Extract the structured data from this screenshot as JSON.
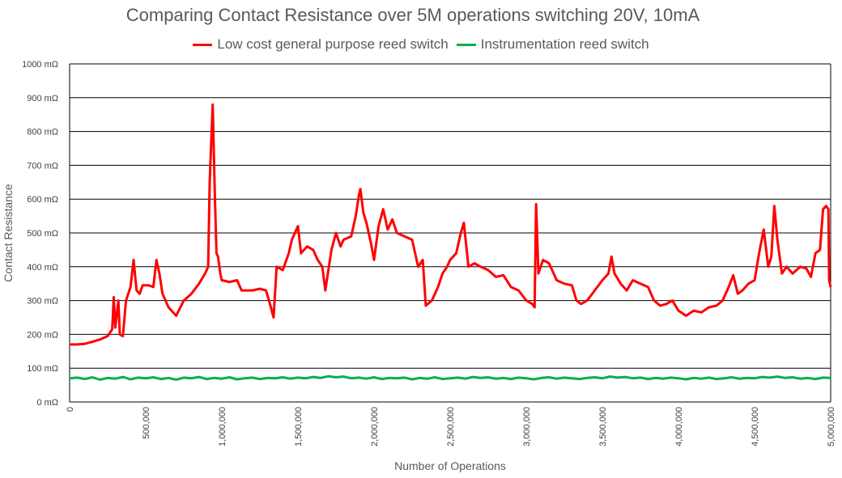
{
  "chart_data": {
    "type": "line",
    "title": "Comparing Contact Resistance over 5M operations switching 20V, 10mA",
    "xlabel": "Number of Operations",
    "ylabel": "Contact Resistance",
    "xlim": [
      0,
      5000000
    ],
    "ylim": [
      0,
      1000
    ],
    "grid": true,
    "legend": "top",
    "x_ticks": [
      "0",
      "500,000",
      "1,000,000",
      "1,500,000",
      "2,000,000",
      "2,500,000",
      "3,000,000",
      "3,500,000",
      "4,000,000",
      "4,500,000",
      "5,000,000"
    ],
    "y_ticks": [
      "0 mΩ",
      "100 mΩ",
      "200 mΩ",
      "300 mΩ",
      "400 mΩ",
      "500 mΩ",
      "600 mΩ",
      "700 mΩ",
      "800 mΩ",
      "900 mΩ",
      "1000 mΩ"
    ],
    "series": [
      {
        "name": "Low cost general purpose reed switch",
        "color": "#ff0000",
        "points": [
          [
            0,
            170
          ],
          [
            50000,
            170
          ],
          [
            100000,
            172
          ],
          [
            150000,
            178
          ],
          [
            200000,
            185
          ],
          [
            250000,
            195
          ],
          [
            280000,
            215
          ],
          [
            290000,
            310
          ],
          [
            300000,
            220
          ],
          [
            320000,
            300
          ],
          [
            330000,
            200
          ],
          [
            350000,
            195
          ],
          [
            370000,
            300
          ],
          [
            400000,
            340
          ],
          [
            420000,
            420
          ],
          [
            440000,
            330
          ],
          [
            460000,
            320
          ],
          [
            480000,
            345
          ],
          [
            520000,
            345
          ],
          [
            550000,
            340
          ],
          [
            570000,
            420
          ],
          [
            590000,
            380
          ],
          [
            610000,
            320
          ],
          [
            650000,
            280
          ],
          [
            700000,
            255
          ],
          [
            750000,
            300
          ],
          [
            800000,
            320
          ],
          [
            850000,
            350
          ],
          [
            890000,
            380
          ],
          [
            910000,
            400
          ],
          [
            920000,
            650
          ],
          [
            940000,
            880
          ],
          [
            955000,
            600
          ],
          [
            965000,
            440
          ],
          [
            975000,
            430
          ],
          [
            990000,
            380
          ],
          [
            1000000,
            360
          ],
          [
            1050000,
            355
          ],
          [
            1100000,
            360
          ],
          [
            1130000,
            330
          ],
          [
            1200000,
            330
          ],
          [
            1250000,
            335
          ],
          [
            1290000,
            330
          ],
          [
            1310000,
            300
          ],
          [
            1340000,
            250
          ],
          [
            1360000,
            400
          ],
          [
            1400000,
            390
          ],
          [
            1440000,
            440
          ],
          [
            1460000,
            480
          ],
          [
            1500000,
            520
          ],
          [
            1520000,
            440
          ],
          [
            1560000,
            460
          ],
          [
            1600000,
            450
          ],
          [
            1630000,
            420
          ],
          [
            1660000,
            400
          ],
          [
            1680000,
            330
          ],
          [
            1720000,
            450
          ],
          [
            1750000,
            500
          ],
          [
            1780000,
            460
          ],
          [
            1800000,
            480
          ],
          [
            1850000,
            490
          ],
          [
            1880000,
            550
          ],
          [
            1900000,
            610
          ],
          [
            1910000,
            630
          ],
          [
            1930000,
            560
          ],
          [
            1950000,
            530
          ],
          [
            1980000,
            470
          ],
          [
            2000000,
            420
          ],
          [
            2030000,
            520
          ],
          [
            2060000,
            570
          ],
          [
            2090000,
            510
          ],
          [
            2120000,
            540
          ],
          [
            2150000,
            500
          ],
          [
            2200000,
            490
          ],
          [
            2250000,
            480
          ],
          [
            2290000,
            400
          ],
          [
            2320000,
            420
          ],
          [
            2340000,
            285
          ],
          [
            2380000,
            300
          ],
          [
            2420000,
            340
          ],
          [
            2450000,
            380
          ],
          [
            2480000,
            400
          ],
          [
            2500000,
            420
          ],
          [
            2540000,
            440
          ],
          [
            2570000,
            500
          ],
          [
            2590000,
            530
          ],
          [
            2620000,
            400
          ],
          [
            2660000,
            410
          ],
          [
            2700000,
            400
          ],
          [
            2750000,
            390
          ],
          [
            2800000,
            370
          ],
          [
            2850000,
            375
          ],
          [
            2900000,
            340
          ],
          [
            2950000,
            330
          ],
          [
            3000000,
            300
          ],
          [
            3040000,
            290
          ],
          [
            3055000,
            280
          ],
          [
            3065000,
            585
          ],
          [
            3080000,
            380
          ],
          [
            3110000,
            420
          ],
          [
            3150000,
            410
          ],
          [
            3200000,
            360
          ],
          [
            3250000,
            350
          ],
          [
            3300000,
            345
          ],
          [
            3330000,
            300
          ],
          [
            3360000,
            290
          ],
          [
            3400000,
            300
          ],
          [
            3450000,
            330
          ],
          [
            3500000,
            360
          ],
          [
            3540000,
            380
          ],
          [
            3560000,
            430
          ],
          [
            3580000,
            380
          ],
          [
            3620000,
            350
          ],
          [
            3660000,
            330
          ],
          [
            3700000,
            360
          ],
          [
            3750000,
            350
          ],
          [
            3800000,
            340
          ],
          [
            3840000,
            300
          ],
          [
            3880000,
            285
          ],
          [
            3920000,
            290
          ],
          [
            3960000,
            300
          ],
          [
            4000000,
            270
          ],
          [
            4050000,
            255
          ],
          [
            4100000,
            270
          ],
          [
            4150000,
            265
          ],
          [
            4200000,
            280
          ],
          [
            4250000,
            285
          ],
          [
            4290000,
            300
          ],
          [
            4330000,
            340
          ],
          [
            4360000,
            375
          ],
          [
            4390000,
            320
          ],
          [
            4420000,
            330
          ],
          [
            4460000,
            350
          ],
          [
            4500000,
            360
          ],
          [
            4530000,
            440
          ],
          [
            4560000,
            510
          ],
          [
            4590000,
            400
          ],
          [
            4610000,
            430
          ],
          [
            4630000,
            580
          ],
          [
            4650000,
            480
          ],
          [
            4680000,
            380
          ],
          [
            4710000,
            400
          ],
          [
            4750000,
            380
          ],
          [
            4800000,
            400
          ],
          [
            4840000,
            395
          ],
          [
            4870000,
            370
          ],
          [
            4900000,
            440
          ],
          [
            4930000,
            450
          ],
          [
            4950000,
            570
          ],
          [
            4970000,
            580
          ],
          [
            4985000,
            570
          ],
          [
            4990000,
            360
          ],
          [
            5000000,
            340
          ]
        ]
      },
      {
        "name": "Instrumentation reed switch",
        "color": "#00b050",
        "points": [
          [
            0,
            70
          ],
          [
            50000,
            72
          ],
          [
            100000,
            68
          ],
          [
            150000,
            73
          ],
          [
            200000,
            66
          ],
          [
            250000,
            71
          ],
          [
            300000,
            69
          ],
          [
            350000,
            74
          ],
          [
            400000,
            67
          ],
          [
            450000,
            72
          ],
          [
            500000,
            70
          ],
          [
            550000,
            73
          ],
          [
            600000,
            68
          ],
          [
            650000,
            71
          ],
          [
            700000,
            66
          ],
          [
            750000,
            72
          ],
          [
            800000,
            70
          ],
          [
            850000,
            74
          ],
          [
            900000,
            68
          ],
          [
            950000,
            71
          ],
          [
            1000000,
            69
          ],
          [
            1050000,
            73
          ],
          [
            1100000,
            67
          ],
          [
            1150000,
            70
          ],
          [
            1200000,
            72
          ],
          [
            1250000,
            68
          ],
          [
            1300000,
            71
          ],
          [
            1350000,
            70
          ],
          [
            1400000,
            73
          ],
          [
            1450000,
            69
          ],
          [
            1500000,
            72
          ],
          [
            1550000,
            70
          ],
          [
            1600000,
            74
          ],
          [
            1650000,
            71
          ],
          [
            1700000,
            76
          ],
          [
            1750000,
            73
          ],
          [
            1800000,
            75
          ],
          [
            1850000,
            70
          ],
          [
            1900000,
            72
          ],
          [
            1950000,
            69
          ],
          [
            2000000,
            73
          ],
          [
            2050000,
            68
          ],
          [
            2100000,
            71
          ],
          [
            2150000,
            70
          ],
          [
            2200000,
            72
          ],
          [
            2250000,
            67
          ],
          [
            2300000,
            71
          ],
          [
            2350000,
            69
          ],
          [
            2400000,
            73
          ],
          [
            2450000,
            68
          ],
          [
            2500000,
            70
          ],
          [
            2550000,
            72
          ],
          [
            2600000,
            69
          ],
          [
            2650000,
            74
          ],
          [
            2700000,
            71
          ],
          [
            2750000,
            73
          ],
          [
            2800000,
            69
          ],
          [
            2850000,
            71
          ],
          [
            2900000,
            68
          ],
          [
            2950000,
            72
          ],
          [
            3000000,
            70
          ],
          [
            3050000,
            67
          ],
          [
            3100000,
            71
          ],
          [
            3150000,
            73
          ],
          [
            3200000,
            69
          ],
          [
            3250000,
            72
          ],
          [
            3300000,
            70
          ],
          [
            3350000,
            68
          ],
          [
            3400000,
            71
          ],
          [
            3450000,
            73
          ],
          [
            3500000,
            70
          ],
          [
            3550000,
            75
          ],
          [
            3600000,
            72
          ],
          [
            3650000,
            74
          ],
          [
            3700000,
            70
          ],
          [
            3750000,
            72
          ],
          [
            3800000,
            68
          ],
          [
            3850000,
            71
          ],
          [
            3900000,
            69
          ],
          [
            3950000,
            72
          ],
          [
            4000000,
            70
          ],
          [
            4050000,
            67
          ],
          [
            4100000,
            71
          ],
          [
            4150000,
            69
          ],
          [
            4200000,
            72
          ],
          [
            4250000,
            68
          ],
          [
            4300000,
            70
          ],
          [
            4350000,
            73
          ],
          [
            4400000,
            69
          ],
          [
            4450000,
            71
          ],
          [
            4500000,
            70
          ],
          [
            4550000,
            74
          ],
          [
            4600000,
            72
          ],
          [
            4650000,
            75
          ],
          [
            4700000,
            71
          ],
          [
            4750000,
            73
          ],
          [
            4800000,
            69
          ],
          [
            4850000,
            71
          ],
          [
            4900000,
            68
          ],
          [
            4950000,
            72
          ],
          [
            5000000,
            71
          ]
        ]
      }
    ]
  }
}
